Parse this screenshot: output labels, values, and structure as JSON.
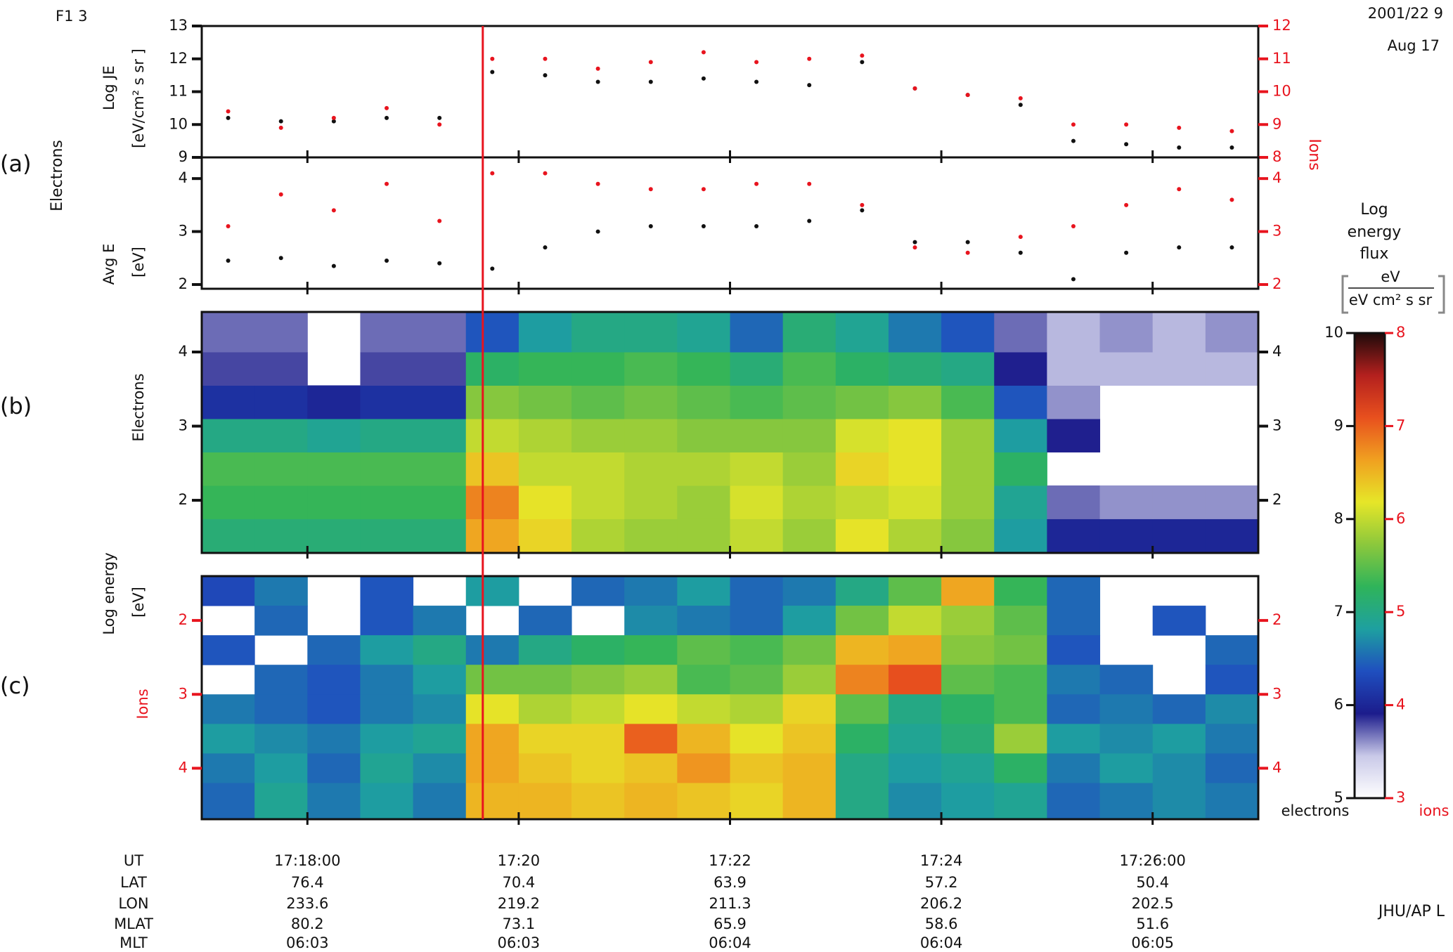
{
  "header": {
    "satellite": "F1 3",
    "date": "2001/22 9",
    "day": "Aug 17",
    "credit": "JHU/AP L"
  },
  "panels": [
    {
      "label": "(a)",
      "title": "Electrons",
      "right_title": "Ions"
    },
    {
      "label": "(b)"
    },
    {
      "label": "(c)"
    }
  ],
  "spectrogram_ylabel": {
    "line1": "Log energy",
    "line2": "[eV]"
  },
  "marker": {
    "x": 19.66,
    "color": "#e8141e"
  },
  "chart_data": [
    {
      "type": "scatter",
      "ylabel": "Log JE",
      "yunit": "[eV/cm² s sr ]",
      "xlim": [
        17,
        27
      ],
      "xticks": [
        18,
        20,
        22,
        24,
        26
      ],
      "ylim": [
        9,
        13
      ],
      "yticks": [
        9,
        10,
        11,
        12,
        13
      ],
      "y2lim": [
        8,
        12
      ],
      "y2ticks": [
        8,
        9,
        10,
        11,
        12
      ],
      "x": [
        17.25,
        17.75,
        18.25,
        18.75,
        19.25,
        19.75,
        20.25,
        20.75,
        21.25,
        21.75,
        22.25,
        22.75,
        23.25,
        23.75,
        24.25,
        24.75,
        25.25,
        25.75,
        26.25,
        26.75
      ],
      "series": [
        {
          "color": "#111111",
          "values": [
            10.2,
            10.1,
            10.1,
            10.2,
            10.2,
            11.6,
            11.5,
            11.3,
            11.3,
            11.4,
            11.3,
            11.2,
            11.9,
            11.1,
            10.9,
            10.6,
            9.5,
            9.4,
            9.3,
            9.3
          ]
        },
        {
          "color": "#e8141e",
          "axis": "y2",
          "values": [
            9.4,
            8.9,
            9.2,
            9.5,
            9.0,
            11.0,
            11.0,
            10.7,
            10.9,
            11.2,
            10.9,
            11.0,
            11.1,
            10.1,
            9.9,
            9.8,
            9.0,
            9.0,
            8.9,
            8.8
          ]
        }
      ]
    },
    {
      "type": "scatter",
      "ylabel": "Avg E",
      "yunit": "[eV]",
      "xlim": [
        17,
        27
      ],
      "xticks": [
        18,
        20,
        22,
        24,
        26
      ],
      "ylim": [
        1.92,
        4.4
      ],
      "yticks": [
        2,
        3,
        4
      ],
      "y2lim": [
        1.92,
        4.4
      ],
      "y2ticks": [
        2,
        3,
        4
      ],
      "x": [
        17.25,
        17.75,
        18.25,
        18.75,
        19.25,
        19.75,
        20.25,
        20.75,
        21.25,
        21.75,
        22.25,
        22.75,
        23.25,
        23.75,
        24.25,
        24.75,
        25.25,
        25.75,
        26.25,
        26.75
      ],
      "series": [
        {
          "color": "#111111",
          "values": [
            2.45,
            2.5,
            2.35,
            2.45,
            2.4,
            2.3,
            2.7,
            3.0,
            3.1,
            3.1,
            3.1,
            3.2,
            3.4,
            2.8,
            2.8,
            2.6,
            2.1,
            2.6,
            2.7,
            2.7
          ]
        },
        {
          "color": "#e8141e",
          "axis": "y2",
          "values": [
            3.1,
            3.7,
            3.4,
            3.9,
            3.2,
            4.1,
            4.1,
            3.9,
            3.8,
            3.8,
            3.9,
            3.9,
            3.5,
            2.7,
            2.6,
            2.9,
            3.1,
            3.5,
            3.8,
            3.6
          ]
        }
      ]
    },
    {
      "type": "heatmap",
      "ylabel": "Electrons",
      "xlim": [
        17,
        27
      ],
      "xticks": [
        18,
        20,
        22,
        24,
        26
      ],
      "ylim": [
        1.29,
        4.54
      ],
      "yticks": [
        2,
        3,
        4
      ],
      "y2ticks": [
        2,
        3,
        4
      ],
      "zlim": [
        5,
        10
      ],
      "xbins": [
        17,
        17.5,
        18,
        18.5,
        19,
        19.5,
        20,
        20.5,
        21,
        21.5,
        22,
        22.5,
        23,
        23.5,
        24,
        24.5,
        25,
        25.5,
        26,
        26.5,
        27
      ],
      "ybins": [
        1.29,
        1.75,
        2.2,
        2.65,
        3.1,
        3.55,
        4.0,
        4.54
      ],
      "z": [
        [
          7.1,
          7.1,
          7.1,
          7.1,
          7.1,
          8.6,
          8.3,
          7.9,
          7.8,
          7.8,
          8.0,
          7.8,
          8.2,
          7.9,
          7.7,
          6.8,
          6.0,
          6.0,
          6.0,
          6.0
        ],
        [
          7.3,
          7.3,
          7.3,
          7.3,
          7.3,
          8.8,
          8.2,
          8.0,
          7.9,
          7.8,
          8.1,
          7.9,
          8.0,
          8.1,
          7.8,
          6.9,
          5.7,
          5.6,
          5.6,
          5.6
        ],
        [
          7.4,
          7.4,
          7.4,
          7.4,
          7.4,
          8.4,
          8.0,
          8.0,
          7.9,
          7.9,
          8.0,
          7.8,
          8.3,
          8.2,
          7.8,
          7.2,
          null,
          null,
          null,
          null
        ],
        [
          7.0,
          7.0,
          6.9,
          7.0,
          7.0,
          8.0,
          7.9,
          7.8,
          7.8,
          7.7,
          7.7,
          7.7,
          8.1,
          8.2,
          7.8,
          6.8,
          5.9,
          null,
          null,
          null
        ],
        [
          6.1,
          6.1,
          6.0,
          6.1,
          6.1,
          7.7,
          7.6,
          7.5,
          7.6,
          7.5,
          7.4,
          7.5,
          7.6,
          7.7,
          7.4,
          6.4,
          5.6,
          null,
          null,
          null
        ],
        [
          5.8,
          5.8,
          null,
          5.8,
          5.8,
          7.2,
          7.3,
          7.3,
          7.4,
          7.3,
          7.1,
          7.4,
          7.2,
          7.1,
          7.0,
          5.9,
          5.5,
          5.5,
          5.5,
          5.5
        ],
        [
          5.7,
          5.7,
          null,
          5.7,
          5.7,
          6.4,
          6.8,
          7.0,
          7.0,
          6.9,
          6.5,
          7.1,
          6.9,
          6.6,
          6.4,
          5.7,
          5.5,
          5.6,
          5.5,
          5.6
        ]
      ]
    },
    {
      "type": "heatmap",
      "ylabel": "Ions",
      "xlim": [
        17,
        27
      ],
      "xticks": [
        18,
        20,
        22,
        24,
        26
      ],
      "ylim": [
        4.69,
        1.4
      ],
      "yticks": [
        2,
        3,
        4
      ],
      "y2ticks": [
        2,
        3,
        4
      ],
      "zlim": [
        3,
        8
      ],
      "xbins": [
        17,
        17.5,
        18,
        18.5,
        19,
        19.5,
        20,
        20.5,
        21,
        21.5,
        22,
        22.5,
        23,
        23.5,
        24,
        24.5,
        25,
        25.5,
        26,
        26.5,
        27
      ],
      "ybins": [
        1.4,
        1.8,
        2.2,
        2.6,
        3.0,
        3.4,
        3.8,
        4.2,
        4.69
      ],
      "z": [
        [
          4.3,
          4.6,
          null,
          4.4,
          null,
          4.8,
          null,
          4.5,
          4.6,
          4.8,
          4.5,
          4.6,
          5.0,
          5.5,
          6.6,
          5.3,
          4.5,
          null,
          null,
          null
        ],
        [
          null,
          4.5,
          null,
          4.4,
          4.6,
          null,
          4.5,
          null,
          4.7,
          4.6,
          4.5,
          4.8,
          5.6,
          6.0,
          5.8,
          5.5,
          4.5,
          null,
          4.4,
          null
        ],
        [
          4.4,
          null,
          4.5,
          4.8,
          5.0,
          4.6,
          5.0,
          5.2,
          5.3,
          5.5,
          5.4,
          5.6,
          6.5,
          6.6,
          5.7,
          5.6,
          4.4,
          null,
          null,
          4.5
        ],
        [
          null,
          4.5,
          4.4,
          4.6,
          4.8,
          5.6,
          5.6,
          5.7,
          5.8,
          5.4,
          5.5,
          5.8,
          6.8,
          7.1,
          5.5,
          5.4,
          4.6,
          4.5,
          null,
          4.4
        ],
        [
          4.6,
          4.5,
          4.4,
          4.6,
          4.7,
          6.2,
          5.9,
          6.0,
          6.2,
          6.0,
          5.9,
          6.3,
          5.5,
          5.0,
          5.2,
          5.4,
          4.5,
          4.6,
          4.5,
          4.7
        ],
        [
          4.8,
          4.7,
          4.6,
          4.8,
          4.9,
          6.6,
          6.3,
          6.3,
          7.0,
          6.5,
          6.2,
          6.4,
          5.2,
          4.9,
          5.1,
          5.8,
          4.8,
          4.7,
          4.8,
          4.6
        ],
        [
          4.6,
          4.8,
          4.5,
          4.9,
          4.7,
          6.6,
          6.4,
          6.3,
          6.4,
          6.7,
          6.4,
          6.5,
          5.0,
          4.8,
          4.9,
          5.2,
          4.6,
          4.8,
          4.7,
          4.5
        ],
        [
          4.5,
          4.9,
          4.6,
          4.8,
          4.6,
          6.5,
          6.5,
          6.4,
          6.5,
          6.4,
          6.3,
          6.5,
          5.0,
          4.7,
          4.8,
          4.9,
          4.5,
          4.6,
          4.7,
          4.6
        ]
      ]
    }
  ],
  "colorbar": {
    "title": [
      "Log",
      "energy",
      "flux"
    ],
    "unit_numerator": "eV",
    "unit_denominator": "eV cm² s sr",
    "ylim": [
      5,
      10
    ],
    "ticks": [
      5,
      6,
      7,
      8,
      9,
      10
    ],
    "y2lim": [
      3,
      8
    ],
    "y2ticks": [
      3,
      4,
      5,
      6,
      7,
      8
    ],
    "label": "electrons",
    "y2label": "ions",
    "colors": [
      "#ffffff",
      "#c9c9e8",
      "#1c1c8c",
      "#1f4fbf",
      "#1ea0a0",
      "#2fb45a",
      "#8cc83c",
      "#e6e628",
      "#f0a020",
      "#e8501e",
      "#b4201e",
      "#1e0a0a"
    ]
  },
  "ephemeris": {
    "labels": [
      "UT",
      "LAT",
      "LON",
      "MLAT",
      "MLT"
    ],
    "rows": [
      [
        "17:18:00",
        "17:20",
        "17:22",
        "17:24",
        "17:26:00"
      ],
      [
        76.4,
        70.4,
        63.9,
        57.2,
        50.4
      ],
      [
        233.6,
        219.2,
        211.3,
        206.2,
        202.5
      ],
      [
        80.2,
        73.1,
        65.9,
        58.6,
        51.6
      ],
      [
        "06:03",
        "06:03",
        "06:04",
        "06:04",
        "06:05"
      ]
    ]
  }
}
